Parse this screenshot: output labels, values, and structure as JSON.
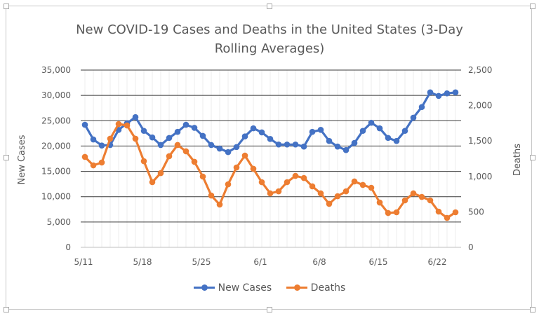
{
  "chart_data": {
    "type": "line",
    "title": "New COVID-19 Cases and Deaths in the United States (3-Day Rolling Averages)",
    "title_lines": [
      "New COVID-19 Cases and Deaths in the United States (3-Day",
      "Rolling Averages)"
    ],
    "ylabel": "New Cases",
    "y2label": "Deaths",
    "ylim": [
      0,
      35000
    ],
    "y2lim": [
      0,
      2500
    ],
    "yticks": [
      "0",
      "5,000",
      "10,000",
      "15,000",
      "20,000",
      "25,000",
      "30,000",
      "35,000"
    ],
    "y2ticks": [
      "0",
      "500",
      "1,000",
      "1,500",
      "2,000",
      "2,500"
    ],
    "xtick_labels": [
      "5/11",
      "5/18",
      "5/25",
      "6/1",
      "6/8",
      "6/15",
      "6/22"
    ],
    "x": [
      "5/11",
      "5/12",
      "5/13",
      "5/14",
      "5/15",
      "5/16",
      "5/17",
      "5/18",
      "5/19",
      "5/20",
      "5/21",
      "5/22",
      "5/23",
      "5/24",
      "5/25",
      "5/26",
      "5/27",
      "5/28",
      "5/29",
      "5/30",
      "5/31",
      "6/1",
      "6/2",
      "6/3",
      "6/4",
      "6/5",
      "6/6",
      "6/7",
      "6/8",
      "6/9",
      "6/10",
      "6/11",
      "6/12",
      "6/13",
      "6/14",
      "6/15",
      "6/16",
      "6/17",
      "6/18",
      "6/19",
      "6/20",
      "6/21",
      "6/22",
      "6/23",
      "6/24"
    ],
    "grid": true,
    "legend_position": "bottom",
    "series": [
      {
        "name": "New Cases",
        "axis": "left",
        "color": "#4472C4",
        "values": [
          24200,
          21300,
          20100,
          20200,
          23200,
          24500,
          25700,
          23000,
          21700,
          20200,
          21600,
          22800,
          24200,
          23600,
          22000,
          20200,
          19500,
          18800,
          19800,
          21900,
          23500,
          22700,
          21400,
          20300,
          20300,
          20300,
          19900,
          22800,
          23200,
          21000,
          19900,
          19200,
          20600,
          23000,
          24600,
          23500,
          21600,
          21000,
          23000,
          25600,
          27700,
          30600,
          29900,
          30400,
          30600
        ]
      },
      {
        "name": "Deaths",
        "axis": "right",
        "color": "#ED7D31",
        "values": [
          1275,
          1156,
          1196,
          1532,
          1739,
          1719,
          1532,
          1215,
          919,
          1047,
          1285,
          1443,
          1354,
          1206,
          998,
          731,
          603,
          889,
          1126,
          1294,
          1107,
          919,
          761,
          790,
          919,
          1008,
          978,
          860,
          761,
          613,
          721,
          790,
          929,
          880,
          840,
          632,
          484,
          494,
          662,
          761,
          711,
          662,
          504,
          415,
          494
        ]
      }
    ]
  }
}
